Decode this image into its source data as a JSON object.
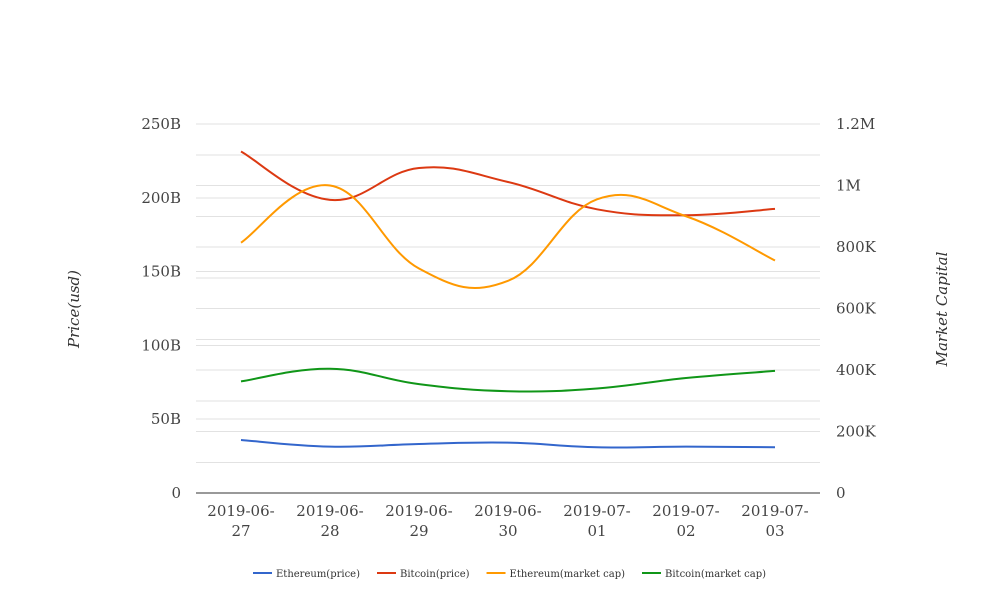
{
  "chart_data": {
    "type": "line",
    "title": "",
    "categories": [
      "2019-06-27",
      "2019-06-28",
      "2019-06-29",
      "2019-06-30",
      "2019-07-01",
      "2019-07-02",
      "2019-07-03"
    ],
    "category_labels": [
      [
        "2019-06-",
        "27"
      ],
      [
        "2019-06-",
        "28"
      ],
      [
        "2019-06-",
        "29"
      ],
      [
        "2019-06-",
        "30"
      ],
      [
        "2019-07-",
        "01"
      ],
      [
        "2019-07-",
        "02"
      ],
      [
        "2019-07-",
        "03"
      ]
    ],
    "y_left": {
      "label": "Price(usd)",
      "ylim": [
        0,
        250000000000
      ],
      "ticks": [
        0,
        50000000000,
        100000000000,
        150000000000,
        200000000000,
        250000000000
      ],
      "tick_labels": [
        "0",
        "50B",
        "100B",
        "150B",
        "200B",
        "250B"
      ]
    },
    "y_right": {
      "label": "Market Capital",
      "ylim": [
        0,
        1200000
      ],
      "ticks": [
        0,
        200000,
        400000,
        600000,
        800000,
        1000000,
        1200000
      ],
      "tick_labels": [
        "0",
        "200K",
        "400K",
        "600K",
        "800K",
        "1M",
        "1.2M"
      ]
    },
    "grid": true,
    "legend_position": "bottom",
    "series": [
      {
        "name": "Ethereum(price)",
        "axis": "left",
        "color": "#3366cc",
        "values": [
          35900000000,
          31400000000,
          33200000000,
          34100000000,
          31000000000,
          31400000000,
          31000000000
        ]
      },
      {
        "name": "Bitcoin(price)",
        "axis": "left",
        "color": "#dc3912",
        "values": [
          231400000000,
          198600000000,
          220200000000,
          210700000000,
          192200000000,
          188200000000,
          192500000000
        ]
      },
      {
        "name": "Ethereum(market cap)",
        "axis": "right",
        "color": "#ff9900",
        "values": [
          814000,
          1000000,
          730000,
          690000,
          955000,
          900000,
          756000
        ]
      },
      {
        "name": "Bitcoin(market cap)",
        "axis": "right",
        "color": "#109618",
        "values": [
          363000,
          404000,
          354000,
          331000,
          340000,
          374000,
          397000
        ]
      }
    ]
  }
}
